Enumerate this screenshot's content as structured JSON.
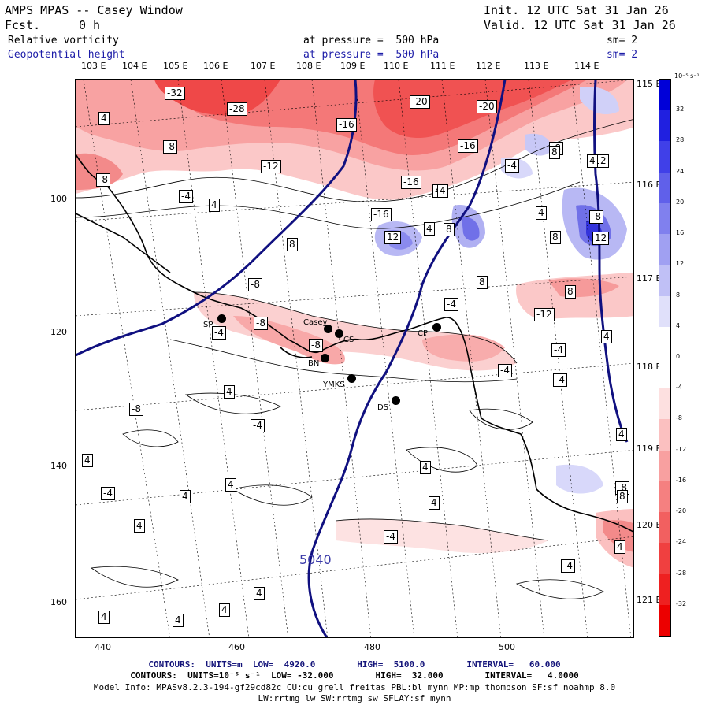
{
  "header": {
    "title": "AMPS MPAS -- Casey Window",
    "fcst_label": "Fcst.",
    "fcst_value": "0 h",
    "init": "Init. 12 UTC Sat 31 Jan 26",
    "valid": "Valid. 12 UTC Sat 31 Jan 26",
    "field1_name": "Relative vorticity",
    "field1_level": "at pressure =  500 hPa",
    "field1_sm": "sm= 2",
    "field2_name": "Geopotential height",
    "field2_level": "at pressure =  500 hPa",
    "field2_sm": "sm= 2"
  },
  "lon_ticks_top": [
    "103 E",
    "104 E",
    "105 E",
    "106 E",
    "107 E",
    "108 E",
    "109 E",
    "110 E",
    "111 E",
    "112 E",
    "113 E",
    "114 E"
  ],
  "lat_ticks_right": [
    "115 E",
    "116 E",
    "117 E",
    "118 E",
    "119 E",
    "120 E",
    "121 E"
  ],
  "y_ticks": [
    "100",
    "120",
    "140",
    "160"
  ],
  "x_ticks": [
    "440",
    "460",
    "480",
    "500"
  ],
  "colorbar": {
    "unit_label": "10⁻⁵ s⁻¹",
    "labels": [
      "32",
      "28",
      "24",
      "20",
      "16",
      "12",
      "8",
      "4",
      "0",
      "-4",
      "-8",
      "-12",
      "-16",
      "-20",
      "-24",
      "-28",
      "-32"
    ],
    "colors": [
      "#0000d8",
      "#2020e0",
      "#4040e8",
      "#6060ea",
      "#8080ee",
      "#a0a0f2",
      "#c0c0f6",
      "#e0e0fa",
      "#ffffff",
      "#ffffff",
      "#fde0e0",
      "#fbc0c0",
      "#f8a0a0",
      "#f58080",
      "#f26060",
      "#f04040",
      "#ee2020",
      "#ec0000"
    ]
  },
  "contour_labels": [
    "-32",
    "-28",
    "4",
    "-20",
    "-20",
    "-16",
    "-8",
    "-16",
    "-8",
    "-12",
    "-16",
    "-4",
    "-8",
    "-12",
    "4",
    "-4",
    "4",
    "-16",
    "4",
    "-8",
    "4",
    "12",
    "8",
    "8",
    "8",
    "12",
    "8",
    "-8",
    "-4",
    "8",
    "-12",
    "-4",
    "-8",
    "-8",
    "-4",
    "-4",
    "-4",
    "-8",
    "4",
    "-4",
    "4",
    "4",
    "-4",
    "4",
    "4",
    "4",
    "4",
    "-4",
    "-8",
    "4",
    "-4",
    "4",
    "4",
    "4",
    "4",
    "4",
    "8",
    "4",
    "4",
    "4",
    "8"
  ],
  "height_label": "5040",
  "sites": [
    {
      "label": "SP"
    },
    {
      "label": "Casey"
    },
    {
      "label": "CS"
    },
    {
      "label": "BN"
    },
    {
      "label": "YMKS"
    },
    {
      "label": "DS"
    },
    {
      "label": "CP"
    }
  ],
  "footer": {
    "line1": "CONTOURS:  UNITS=m  LOW=  4920.0        HIGH=  5100.0        INTERVAL=   60.000",
    "line2": "CONTOURS:  UNITS=10⁻⁵ s⁻¹  LOW= -32.000        HIGH=  32.000        INTERVAL=   4.0000",
    "line3": "Model Info: MPASv8.2.3-194-gf29cd82c CU:cu_grell_freitas PBL:bl_mynn MP:mp_thompson SF:sf_noahmp 8.0",
    "line4": "LW:rrtmg_lw SW:rrtmg_sw SFLAY:sf_mynn"
  }
}
